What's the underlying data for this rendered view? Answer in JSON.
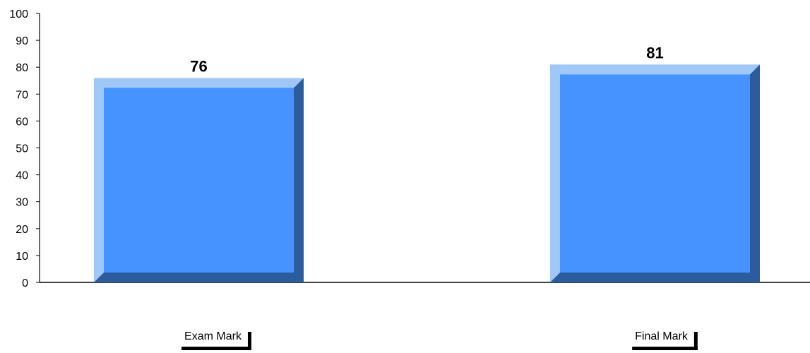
{
  "chart_data": {
    "type": "bar",
    "categories": [
      "Exam Mark",
      "Final Mark"
    ],
    "values": [
      76,
      81
    ],
    "data_labels": [
      "76",
      "81"
    ],
    "title": "",
    "xlabel": "",
    "ylabel": "",
    "ylim": [
      0,
      100
    ],
    "yticks": [
      0,
      10,
      20,
      30,
      40,
      50,
      60,
      70,
      80,
      90,
      100
    ],
    "grid": false,
    "legend": "none",
    "bar_style": "3d-bevel",
    "colors": {
      "face": "#4693FF",
      "bevel_light": "#9FC8F7",
      "bevel_dark": "#2B5C9E",
      "axis": "#000000"
    }
  }
}
